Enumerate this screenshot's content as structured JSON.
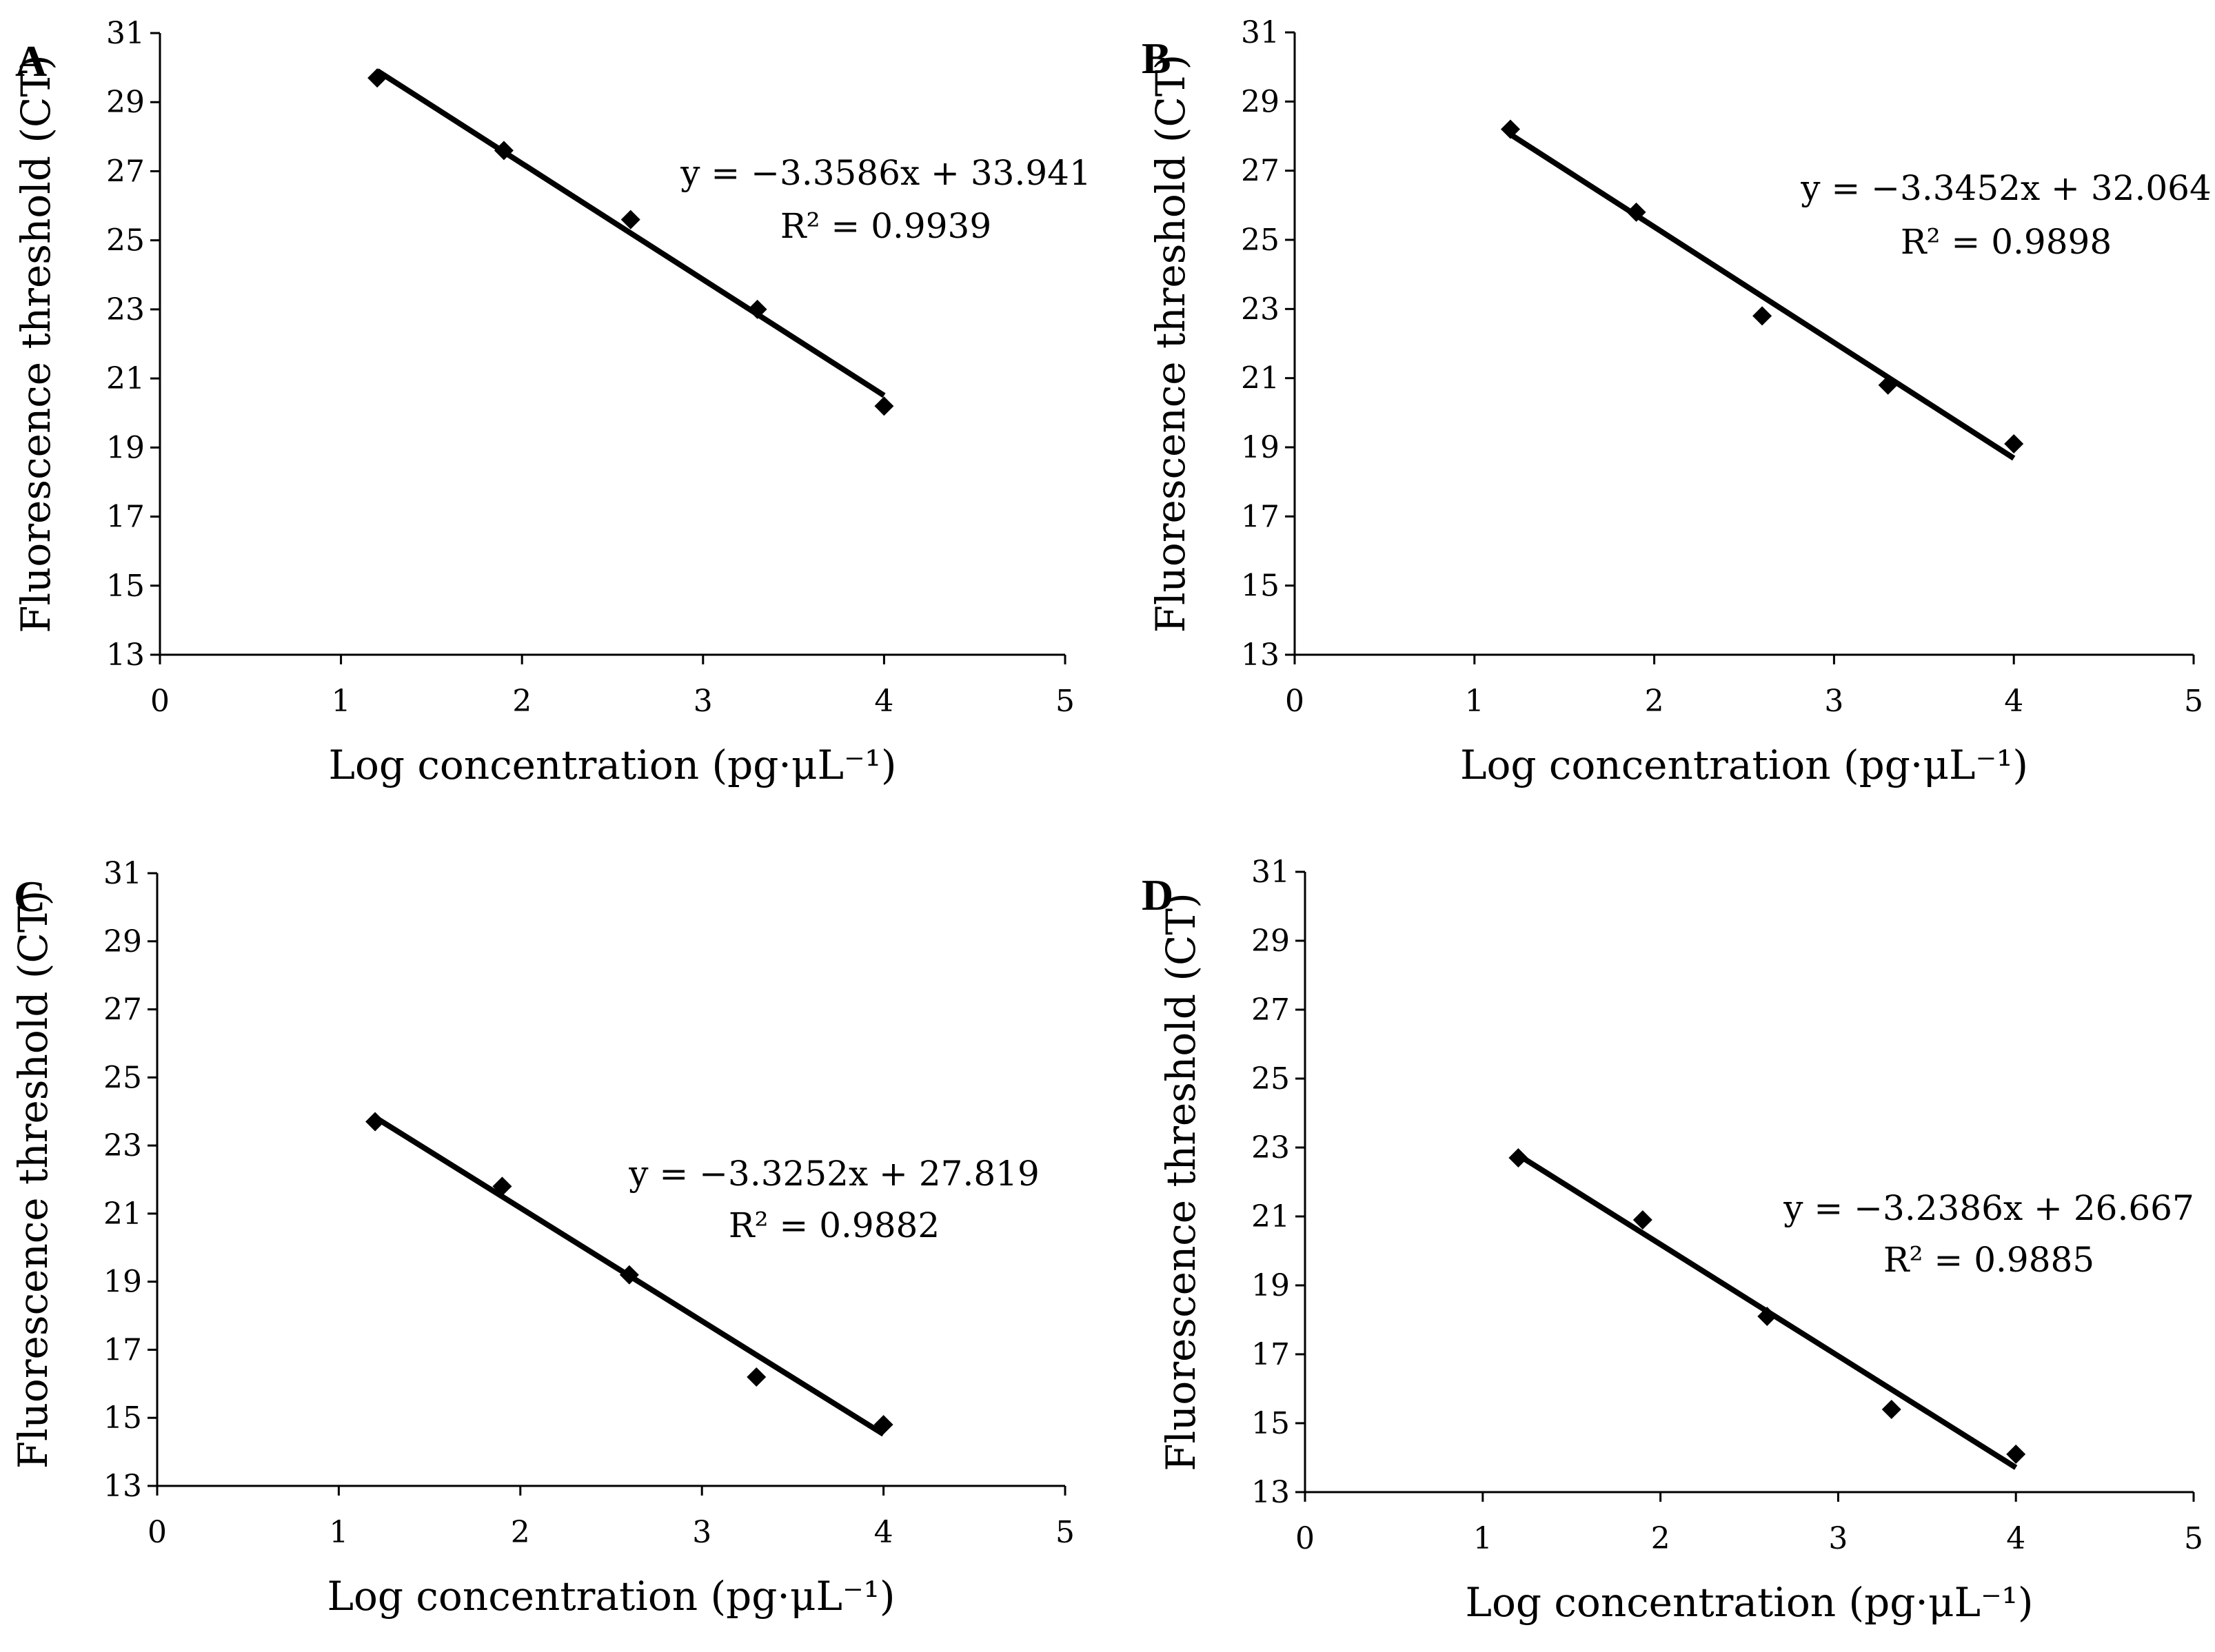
{
  "chart_data": [
    {
      "panel": "A",
      "type": "scatter",
      "title": "",
      "xlabel": "Log concentration (pg·μL⁻¹)",
      "ylabel": "Fluorescence threshold (CT)",
      "xlim": [
        0,
        5
      ],
      "ylim": [
        13,
        31
      ],
      "x_ticks": [
        0,
        1,
        2,
        3,
        4,
        5
      ],
      "y_ticks": [
        13,
        15,
        17,
        19,
        21,
        23,
        25,
        27,
        29,
        31
      ],
      "grid": false,
      "series": [
        {
          "name": "CT",
          "x": [
            1.2,
            1.9,
            2.6,
            3.3,
            4.0
          ],
          "y": [
            29.7,
            27.6,
            25.6,
            23.0,
            20.2
          ]
        }
      ],
      "trendline": {
        "slope": -3.3586,
        "intercept": 33.941,
        "x_range": [
          1.2,
          4.0
        ]
      },
      "equation": "y = −3.3586x + 33.941",
      "r_squared": "R² = 0.9939"
    },
    {
      "panel": "B",
      "type": "scatter",
      "title": "",
      "xlabel": "Log concentration (pg·μL⁻¹)",
      "ylabel": "Fluorescence threshold (CT)",
      "xlim": [
        0,
        5
      ],
      "ylim": [
        13,
        31
      ],
      "x_ticks": [
        0,
        1,
        2,
        3,
        4,
        5
      ],
      "y_ticks": [
        13,
        15,
        17,
        19,
        21,
        23,
        25,
        27,
        29,
        31
      ],
      "grid": false,
      "series": [
        {
          "name": "CT",
          "x": [
            1.2,
            1.9,
            2.6,
            3.3,
            4.0
          ],
          "y": [
            28.2,
            25.8,
            22.8,
            20.8,
            19.1
          ]
        }
      ],
      "trendline": {
        "slope": -3.3452,
        "intercept": 32.064,
        "x_range": [
          1.2,
          4.0
        ]
      },
      "equation": "y = −3.3452x + 32.064",
      "r_squared": "R² = 0.9898"
    },
    {
      "panel": "C",
      "type": "scatter",
      "title": "",
      "xlabel": "Log concentration (pg·μL⁻¹)",
      "ylabel": "Fluorescence threshold (CT)",
      "xlim": [
        0,
        5
      ],
      "ylim": [
        13,
        31
      ],
      "x_ticks": [
        0,
        1,
        2,
        3,
        4,
        5
      ],
      "y_ticks": [
        13,
        15,
        17,
        19,
        21,
        23,
        25,
        27,
        29,
        31
      ],
      "grid": false,
      "series": [
        {
          "name": "CT",
          "x": [
            1.2,
            1.9,
            2.6,
            3.3,
            4.0
          ],
          "y": [
            23.7,
            21.8,
            19.2,
            16.2,
            14.8
          ]
        }
      ],
      "trendline": {
        "slope": -3.3252,
        "intercept": 27.819,
        "x_range": [
          1.2,
          4.0
        ]
      },
      "equation": "y = −3.3252x + 27.819",
      "r_squared": "R² = 0.9882"
    },
    {
      "panel": "D",
      "type": "scatter",
      "title": "",
      "xlabel": "Log concentration (pg·μL⁻¹)",
      "ylabel": "Fluorescence threshold (CT)",
      "xlim": [
        0,
        5
      ],
      "ylim": [
        13,
        31
      ],
      "x_ticks": [
        0,
        1,
        2,
        3,
        4,
        5
      ],
      "y_ticks": [
        13,
        15,
        17,
        19,
        21,
        23,
        25,
        27,
        29,
        31
      ],
      "grid": false,
      "series": [
        {
          "name": "CT",
          "x": [
            1.2,
            1.9,
            2.6,
            3.3,
            4.0
          ],
          "y": [
            22.7,
            20.9,
            18.1,
            15.4,
            14.1
          ]
        }
      ],
      "trendline": {
        "slope": -3.2386,
        "intercept": 26.667,
        "x_range": [
          1.2,
          4.0
        ]
      },
      "equation": "y = −3.2386x + 26.667",
      "r_squared": "R² = 0.9885"
    }
  ]
}
